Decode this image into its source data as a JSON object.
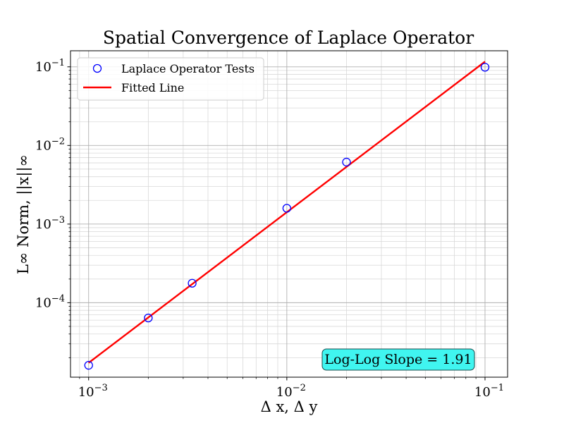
{
  "chart_data": {
    "type": "scatter",
    "title": "Spatial Convergence of Laplace Operator",
    "xlabel": "Δ x, Δ y",
    "ylabel": "L∞ Norm, ||x||∞",
    "xscale": "log",
    "yscale": "log",
    "xlim": [
      0.00081,
      0.13
    ],
    "ylim": [
      1.13e-05,
      0.16
    ],
    "grid": "on (major and minor)",
    "legend_placement": "top-left",
    "x_ticks": [
      0.001,
      0.01,
      0.1
    ],
    "y_ticks": [
      0.0001,
      0.001,
      0.01,
      0.1
    ],
    "series": [
      {
        "name": "Laplace Operator Tests",
        "kind": "markers",
        "color": "#0000ff",
        "x": [
          0.001,
          0.002,
          0.00333,
          0.01,
          0.02,
          0.1
        ],
        "y": [
          1.6e-05,
          6.4e-05,
          0.000177,
          0.00159,
          0.00614,
          0.0988
        ]
      },
      {
        "name": "Fitted Line",
        "kind": "line",
        "color": "#ff0000",
        "x": [
          0.001,
          0.1
        ],
        "y": [
          1.72e-05,
          0.1165
        ]
      }
    ],
    "annotation": {
      "text": "Log-Log Slope = 1.91",
      "box_color": "#40f5f0"
    }
  }
}
